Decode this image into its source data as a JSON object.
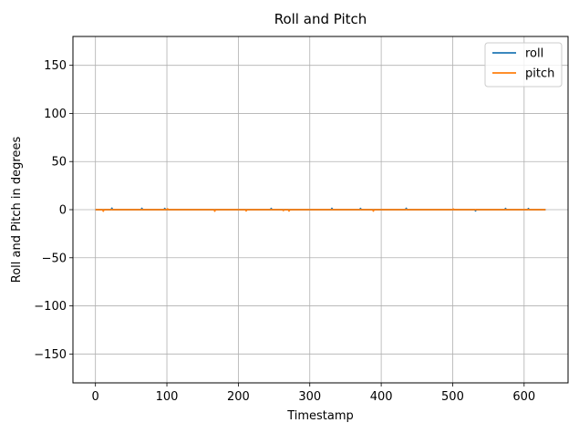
{
  "chart_data": {
    "type": "line",
    "title": "Roll and Pitch",
    "xlabel": "Timestamp",
    "ylabel": "Roll and Pitch in degrees",
    "xlim": [
      -31.5,
      661.5
    ],
    "ylim": [
      -180,
      180
    ],
    "xticks": [
      0,
      100,
      200,
      300,
      400,
      500,
      600
    ],
    "yticks": [
      -150,
      -100,
      -50,
      0,
      50,
      100,
      150
    ],
    "grid": true,
    "legend_position": "top-right",
    "series": [
      {
        "name": "roll",
        "color": "#1f77b4",
        "x": [
          0,
          22,
          23,
          24,
          64,
          65,
          66,
          96,
          97,
          98,
          245,
          246,
          247,
          330,
          331,
          332,
          370,
          371,
          372,
          434,
          435,
          436,
          531,
          532,
          533,
          573,
          574,
          575,
          605,
          606,
          607,
          630
        ],
        "y": [
          0,
          0,
          1.5,
          0,
          0,
          1.3,
          0,
          0,
          1.2,
          0,
          0,
          1.2,
          0,
          0,
          1.3,
          0,
          0,
          1.2,
          0,
          0,
          1.4,
          0,
          0,
          -1.2,
          0,
          0,
          1.2,
          0,
          0,
          1.1,
          0,
          0
        ]
      },
      {
        "name": "pitch",
        "color": "#ff7f0e",
        "x": [
          0,
          10,
          11,
          12,
          100,
          101,
          102,
          166,
          167,
          168,
          210,
          211,
          212,
          262,
          263,
          264,
          270,
          271,
          272,
          388,
          389,
          390,
          500,
          501,
          502,
          630
        ],
        "y": [
          0,
          0,
          -1.5,
          0,
          0,
          0.8,
          0,
          0,
          -1.5,
          0,
          0,
          -1.2,
          0,
          0,
          -0.9,
          0,
          0,
          -1.3,
          0,
          0,
          -1.4,
          0,
          0,
          0.6,
          0,
          0
        ]
      }
    ]
  }
}
